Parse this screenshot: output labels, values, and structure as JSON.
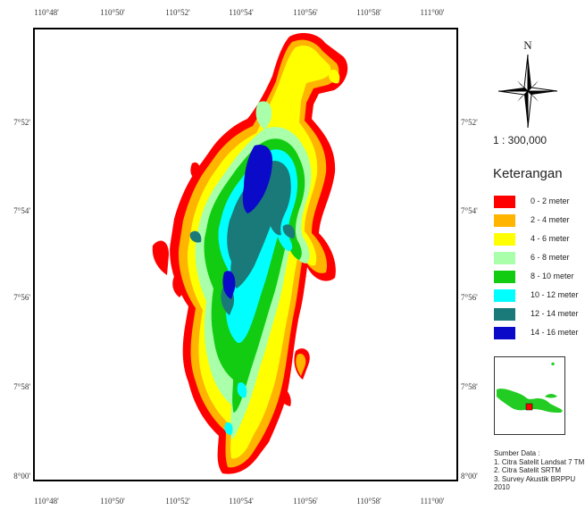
{
  "axes": {
    "top_ticks": [
      "110°48'",
      "110°50'",
      "110°52'",
      "110°54'",
      "110°56'",
      "110°58'",
      "111°00'"
    ],
    "bottom_ticks": [
      "110°48'",
      "110°50'",
      "110°52'",
      "110°54'",
      "110°56'",
      "110°58'",
      "111°00'"
    ],
    "left_ticks": [
      "7°52'",
      "7°54'",
      "7°56'",
      "7°58'",
      "8°00'"
    ],
    "right_ticks": [
      "7°52'",
      "7°54'",
      "7°56'",
      "7°58'",
      "8°00'"
    ]
  },
  "north_arrow": {
    "letter": "N",
    "icon": "compass-rose-icon"
  },
  "scale": "1 : 300,000",
  "legend": {
    "title": "Keterangan",
    "items": [
      {
        "label": "0 - 2 meter",
        "color": "#ff0000"
      },
      {
        "label": "2 - 4 meter",
        "color": "#ffb400"
      },
      {
        "label": "4 - 6 meter",
        "color": "#ffff00"
      },
      {
        "label": "6 - 8 meter",
        "color": "#aaffaa"
      },
      {
        "label": "8 - 10 meter",
        "color": "#11cc11"
      },
      {
        "label": "10 - 12 meter",
        "color": "#00ffff"
      },
      {
        "label": "12 - 14 meter",
        "color": "#1a7a7a"
      },
      {
        "label": "14 - 16 meter",
        "color": "#0a0ac8"
      }
    ]
  },
  "inset_map": {
    "land_color": "#22cc22",
    "marker_color": "#ff0000"
  },
  "source": {
    "title": "Sumber Data :",
    "items": [
      "1. Citra Satelit Landsat 7 TM",
      "2. Citra Satelit SRTM",
      "3. Survey Akustik BRPPU 2010"
    ]
  }
}
